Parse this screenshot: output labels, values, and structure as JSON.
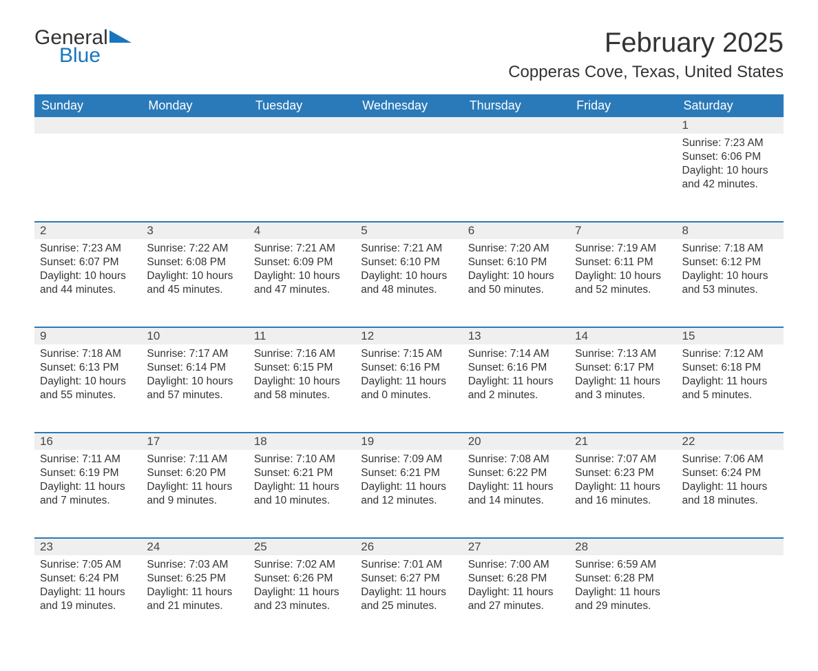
{
  "logo": {
    "text1": "General",
    "text2": "Blue"
  },
  "title": "February 2025",
  "location": "Copperas Cove, Texas, United States",
  "colors": {
    "header_bg": "#2a7ab9",
    "header_text": "#ffffff",
    "daynum_bg": "#efefef",
    "border_top": "#2a7ab9",
    "body_text": "#333333",
    "logo_blue": "#1976bd"
  },
  "day_headers": [
    "Sunday",
    "Monday",
    "Tuesday",
    "Wednesday",
    "Thursday",
    "Friday",
    "Saturday"
  ],
  "weeks": [
    [
      null,
      null,
      null,
      null,
      null,
      null,
      {
        "n": "1",
        "sunrise": "Sunrise: 7:23 AM",
        "sunset": "Sunset: 6:06 PM",
        "daylight": "Daylight: 10 hours and 42 minutes."
      }
    ],
    [
      {
        "n": "2",
        "sunrise": "Sunrise: 7:23 AM",
        "sunset": "Sunset: 6:07 PM",
        "daylight": "Daylight: 10 hours and 44 minutes."
      },
      {
        "n": "3",
        "sunrise": "Sunrise: 7:22 AM",
        "sunset": "Sunset: 6:08 PM",
        "daylight": "Daylight: 10 hours and 45 minutes."
      },
      {
        "n": "4",
        "sunrise": "Sunrise: 7:21 AM",
        "sunset": "Sunset: 6:09 PM",
        "daylight": "Daylight: 10 hours and 47 minutes."
      },
      {
        "n": "5",
        "sunrise": "Sunrise: 7:21 AM",
        "sunset": "Sunset: 6:10 PM",
        "daylight": "Daylight: 10 hours and 48 minutes."
      },
      {
        "n": "6",
        "sunrise": "Sunrise: 7:20 AM",
        "sunset": "Sunset: 6:10 PM",
        "daylight": "Daylight: 10 hours and 50 minutes."
      },
      {
        "n": "7",
        "sunrise": "Sunrise: 7:19 AM",
        "sunset": "Sunset: 6:11 PM",
        "daylight": "Daylight: 10 hours and 52 minutes."
      },
      {
        "n": "8",
        "sunrise": "Sunrise: 7:18 AM",
        "sunset": "Sunset: 6:12 PM",
        "daylight": "Daylight: 10 hours and 53 minutes."
      }
    ],
    [
      {
        "n": "9",
        "sunrise": "Sunrise: 7:18 AM",
        "sunset": "Sunset: 6:13 PM",
        "daylight": "Daylight: 10 hours and 55 minutes."
      },
      {
        "n": "10",
        "sunrise": "Sunrise: 7:17 AM",
        "sunset": "Sunset: 6:14 PM",
        "daylight": "Daylight: 10 hours and 57 minutes."
      },
      {
        "n": "11",
        "sunrise": "Sunrise: 7:16 AM",
        "sunset": "Sunset: 6:15 PM",
        "daylight": "Daylight: 10 hours and 58 minutes."
      },
      {
        "n": "12",
        "sunrise": "Sunrise: 7:15 AM",
        "sunset": "Sunset: 6:16 PM",
        "daylight": "Daylight: 11 hours and 0 minutes."
      },
      {
        "n": "13",
        "sunrise": "Sunrise: 7:14 AM",
        "sunset": "Sunset: 6:16 PM",
        "daylight": "Daylight: 11 hours and 2 minutes."
      },
      {
        "n": "14",
        "sunrise": "Sunrise: 7:13 AM",
        "sunset": "Sunset: 6:17 PM",
        "daylight": "Daylight: 11 hours and 3 minutes."
      },
      {
        "n": "15",
        "sunrise": "Sunrise: 7:12 AM",
        "sunset": "Sunset: 6:18 PM",
        "daylight": "Daylight: 11 hours and 5 minutes."
      }
    ],
    [
      {
        "n": "16",
        "sunrise": "Sunrise: 7:11 AM",
        "sunset": "Sunset: 6:19 PM",
        "daylight": "Daylight: 11 hours and 7 minutes."
      },
      {
        "n": "17",
        "sunrise": "Sunrise: 7:11 AM",
        "sunset": "Sunset: 6:20 PM",
        "daylight": "Daylight: 11 hours and 9 minutes."
      },
      {
        "n": "18",
        "sunrise": "Sunrise: 7:10 AM",
        "sunset": "Sunset: 6:21 PM",
        "daylight": "Daylight: 11 hours and 10 minutes."
      },
      {
        "n": "19",
        "sunrise": "Sunrise: 7:09 AM",
        "sunset": "Sunset: 6:21 PM",
        "daylight": "Daylight: 11 hours and 12 minutes."
      },
      {
        "n": "20",
        "sunrise": "Sunrise: 7:08 AM",
        "sunset": "Sunset: 6:22 PM",
        "daylight": "Daylight: 11 hours and 14 minutes."
      },
      {
        "n": "21",
        "sunrise": "Sunrise: 7:07 AM",
        "sunset": "Sunset: 6:23 PM",
        "daylight": "Daylight: 11 hours and 16 minutes."
      },
      {
        "n": "22",
        "sunrise": "Sunrise: 7:06 AM",
        "sunset": "Sunset: 6:24 PM",
        "daylight": "Daylight: 11 hours and 18 minutes."
      }
    ],
    [
      {
        "n": "23",
        "sunrise": "Sunrise: 7:05 AM",
        "sunset": "Sunset: 6:24 PM",
        "daylight": "Daylight: 11 hours and 19 minutes."
      },
      {
        "n": "24",
        "sunrise": "Sunrise: 7:03 AM",
        "sunset": "Sunset: 6:25 PM",
        "daylight": "Daylight: 11 hours and 21 minutes."
      },
      {
        "n": "25",
        "sunrise": "Sunrise: 7:02 AM",
        "sunset": "Sunset: 6:26 PM",
        "daylight": "Daylight: 11 hours and 23 minutes."
      },
      {
        "n": "26",
        "sunrise": "Sunrise: 7:01 AM",
        "sunset": "Sunset: 6:27 PM",
        "daylight": "Daylight: 11 hours and 25 minutes."
      },
      {
        "n": "27",
        "sunrise": "Sunrise: 7:00 AM",
        "sunset": "Sunset: 6:28 PM",
        "daylight": "Daylight: 11 hours and 27 minutes."
      },
      {
        "n": "28",
        "sunrise": "Sunrise: 6:59 AM",
        "sunset": "Sunset: 6:28 PM",
        "daylight": "Daylight: 11 hours and 29 minutes."
      },
      null
    ]
  ]
}
